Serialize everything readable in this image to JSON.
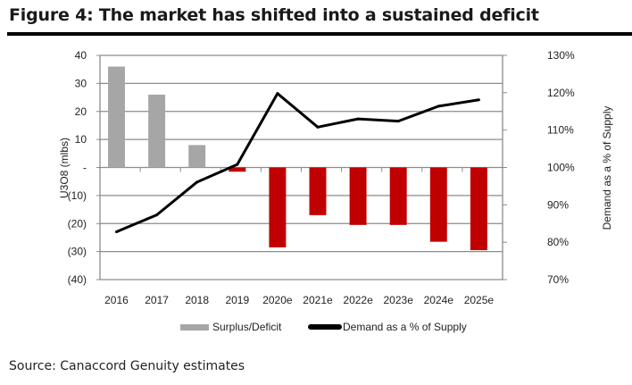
{
  "title": "Figure 4: The market has shifted into a sustained deficit",
  "source": "Source: Canaccord Genuity estimates",
  "chart_data": {
    "type": "bar+line",
    "categories": [
      "2016",
      "2017",
      "2018",
      "2019",
      "2020e",
      "2021e",
      "2022e",
      "2023e",
      "2024e",
      "2025e"
    ],
    "series": [
      {
        "name": "Surplus/Deficit",
        "type": "bar",
        "axis": "left",
        "values": [
          36,
          26,
          8,
          -1.5,
          -28.5,
          -17,
          -20.5,
          -20.5,
          -26.5,
          -29.5
        ],
        "color_positive": "#a6a6a6",
        "color_negative": "#c00000"
      },
      {
        "name": "Demand as a % of Supply",
        "type": "line",
        "axis": "right",
        "values": [
          82.8,
          87.3,
          96.1,
          100.8,
          119.8,
          110.8,
          113.0,
          112.4,
          116.4,
          118.1
        ],
        "color": "#000000"
      }
    ],
    "ylabel": "U3O8 (mlbs)",
    "ylabel_right": "Demand as a % of Supply",
    "ylim": [
      -40,
      40
    ],
    "yticks": [
      "(40)",
      "(30)",
      "(20)",
      "(10)",
      "-",
      "10",
      "20",
      "30",
      "40"
    ],
    "ylim_right": [
      70,
      130
    ],
    "yticks_right": [
      "70%",
      "80%",
      "90%",
      "100%",
      "110%",
      "120%",
      "130%"
    ],
    "grid": true,
    "legend": "bottom"
  }
}
